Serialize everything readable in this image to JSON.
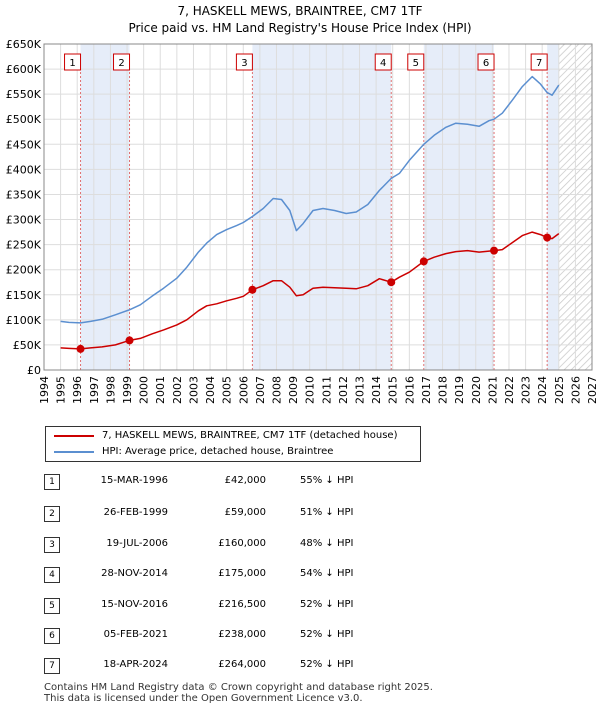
{
  "title_line1": "7, HASKELL MEWS, BRAINTREE, CM7 1TF",
  "title_line2": "Price paid vs. HM Land Registry's House Price Index (HPI)",
  "chart_data": {
    "type": "line",
    "title": "7, HASKELL MEWS, BRAINTREE, CM7 1TF",
    "subtitle": "Price paid vs. HM Land Registry's House Price Index (HPI)",
    "xlim": [
      1994,
      2027
    ],
    "ylim": [
      0,
      650000
    ],
    "x_ticks": [
      1994,
      1995,
      1996,
      1997,
      1998,
      1999,
      2000,
      2001,
      2002,
      2003,
      2004,
      2005,
      2006,
      2007,
      2008,
      2009,
      2010,
      2011,
      2012,
      2013,
      2014,
      2015,
      2016,
      2017,
      2018,
      2019,
      2020,
      2021,
      2022,
      2023,
      2024,
      2025,
      2026,
      2027
    ],
    "y_ticks": [
      {
        "value": 0,
        "label": "£0"
      },
      {
        "value": 50000,
        "label": "£50K"
      },
      {
        "value": 100000,
        "label": "£100K"
      },
      {
        "value": 150000,
        "label": "£150K"
      },
      {
        "value": 200000,
        "label": "£200K"
      },
      {
        "value": 250000,
        "label": "£250K"
      },
      {
        "value": 300000,
        "label": "£300K"
      },
      {
        "value": 350000,
        "label": "£350K"
      },
      {
        "value": 400000,
        "label": "£400K"
      },
      {
        "value": 450000,
        "label": "£450K"
      },
      {
        "value": 500000,
        "label": "£500K"
      },
      {
        "value": 550000,
        "label": "£550K"
      },
      {
        "value": 600000,
        "label": "£600K"
      },
      {
        "value": 650000,
        "label": "£650K"
      }
    ],
    "grid": true,
    "legend_position": "below",
    "shaded_periods": [
      [
        1996.2,
        1999.15
      ],
      [
        2006.55,
        2014.91
      ],
      [
        2016.87,
        2021.1
      ],
      [
        2024.3,
        2025.0
      ]
    ],
    "hatched_from": 2025.0,
    "series": [
      {
        "name": "7, HASKELL MEWS, BRAINTREE, CM7 1TF (detached house)",
        "color": "#cc0000",
        "points": [
          [
            1995.0,
            44000
          ],
          [
            1995.5,
            43000
          ],
          [
            1996.2,
            42000
          ],
          [
            1996.8,
            44000
          ],
          [
            1997.5,
            46000
          ],
          [
            1998.3,
            50000
          ],
          [
            1999.15,
            59000
          ],
          [
            1999.8,
            63000
          ],
          [
            2000.5,
            72000
          ],
          [
            2001.2,
            80000
          ],
          [
            2002.0,
            90000
          ],
          [
            2002.6,
            100000
          ],
          [
            2003.3,
            118000
          ],
          [
            2003.8,
            128000
          ],
          [
            2004.4,
            132000
          ],
          [
            2005.0,
            138000
          ],
          [
            2005.6,
            143000
          ],
          [
            2006.0,
            147000
          ],
          [
            2006.55,
            160000
          ],
          [
            2007.2,
            168000
          ],
          [
            2007.8,
            178000
          ],
          [
            2008.3,
            178000
          ],
          [
            2008.8,
            165000
          ],
          [
            2009.2,
            148000
          ],
          [
            2009.6,
            150000
          ],
          [
            2010.2,
            163000
          ],
          [
            2010.8,
            165000
          ],
          [
            2011.5,
            164000
          ],
          [
            2012.2,
            163000
          ],
          [
            2012.8,
            162000
          ],
          [
            2013.5,
            168000
          ],
          [
            2014.2,
            182000
          ],
          [
            2014.91,
            175000
          ],
          [
            2015.4,
            185000
          ],
          [
            2016.0,
            195000
          ],
          [
            2016.87,
            216500
          ],
          [
            2017.5,
            225000
          ],
          [
            2018.2,
            232000
          ],
          [
            2018.8,
            236000
          ],
          [
            2019.5,
            238000
          ],
          [
            2020.2,
            235000
          ],
          [
            2020.8,
            237000
          ],
          [
            2021.1,
            238000
          ],
          [
            2021.6,
            240000
          ],
          [
            2022.2,
            254000
          ],
          [
            2022.8,
            268000
          ],
          [
            2023.4,
            275000
          ],
          [
            2023.9,
            270000
          ],
          [
            2024.3,
            264000
          ],
          [
            2024.6,
            262000
          ],
          [
            2025.0,
            272000
          ]
        ]
      },
      {
        "name": "HPI: Average price, detached house, Braintree",
        "color": "#5b8fd0",
        "points": [
          [
            1995.0,
            97000
          ],
          [
            1995.5,
            95000
          ],
          [
            1996.2,
            94000
          ],
          [
            1996.8,
            97000
          ],
          [
            1997.5,
            101000
          ],
          [
            1998.3,
            110000
          ],
          [
            1999.15,
            120000
          ],
          [
            1999.8,
            130000
          ],
          [
            2000.5,
            147000
          ],
          [
            2001.2,
            163000
          ],
          [
            2002.0,
            183000
          ],
          [
            2002.6,
            205000
          ],
          [
            2003.3,
            235000
          ],
          [
            2003.8,
            253000
          ],
          [
            2004.4,
            270000
          ],
          [
            2005.0,
            280000
          ],
          [
            2005.6,
            288000
          ],
          [
            2006.0,
            294000
          ],
          [
            2006.55,
            306000
          ],
          [
            2007.2,
            322000
          ],
          [
            2007.8,
            342000
          ],
          [
            2008.3,
            340000
          ],
          [
            2008.8,
            318000
          ],
          [
            2009.2,
            278000
          ],
          [
            2009.6,
            292000
          ],
          [
            2010.2,
            318000
          ],
          [
            2010.8,
            322000
          ],
          [
            2011.5,
            318000
          ],
          [
            2012.2,
            312000
          ],
          [
            2012.8,
            315000
          ],
          [
            2013.5,
            330000
          ],
          [
            2014.2,
            358000
          ],
          [
            2014.91,
            382000
          ],
          [
            2015.4,
            392000
          ],
          [
            2016.0,
            418000
          ],
          [
            2016.87,
            450000
          ],
          [
            2017.5,
            468000
          ],
          [
            2018.2,
            484000
          ],
          [
            2018.8,
            492000
          ],
          [
            2019.5,
            490000
          ],
          [
            2020.2,
            486000
          ],
          [
            2020.8,
            497000
          ],
          [
            2021.1,
            500000
          ],
          [
            2021.6,
            512000
          ],
          [
            2022.2,
            538000
          ],
          [
            2022.8,
            565000
          ],
          [
            2023.4,
            585000
          ],
          [
            2023.9,
            570000
          ],
          [
            2024.3,
            553000
          ],
          [
            2024.6,
            548000
          ],
          [
            2025.0,
            568000
          ]
        ]
      }
    ],
    "markers": [
      {
        "label": "1",
        "x": 1996.2,
        "price": 42000
      },
      {
        "label": "2",
        "x": 1999.15,
        "price": 59000
      },
      {
        "label": "3",
        "x": 2006.55,
        "price": 160000
      },
      {
        "label": "4",
        "x": 2014.91,
        "price": 175000
      },
      {
        "label": "5",
        "x": 2016.87,
        "price": 216500
      },
      {
        "label": "6",
        "x": 2021.1,
        "price": 238000
      },
      {
        "label": "7",
        "x": 2024.3,
        "price": 264000
      }
    ]
  },
  "legend": [
    {
      "label": "7, HASKELL MEWS, BRAINTREE, CM7 1TF (detached house)",
      "color": "#cc0000"
    },
    {
      "label": "HPI: Average price, detached house, Braintree",
      "color": "#5b8fd0"
    }
  ],
  "sales": [
    {
      "num": "1",
      "date": "15-MAR-1996",
      "price": "£42,000",
      "hpi": "55% ↓ HPI"
    },
    {
      "num": "2",
      "date": "26-FEB-1999",
      "price": "£59,000",
      "hpi": "51% ↓ HPI"
    },
    {
      "num": "3",
      "date": "19-JUL-2006",
      "price": "£160,000",
      "hpi": "48% ↓ HPI"
    },
    {
      "num": "4",
      "date": "28-NOV-2014",
      "price": "£175,000",
      "hpi": "54% ↓ HPI"
    },
    {
      "num": "5",
      "date": "15-NOV-2016",
      "price": "£216,500",
      "hpi": "52% ↓ HPI"
    },
    {
      "num": "6",
      "date": "05-FEB-2021",
      "price": "£238,000",
      "hpi": "52% ↓ HPI"
    },
    {
      "num": "7",
      "date": "18-APR-2024",
      "price": "£264,000",
      "hpi": "52% ↓ HPI"
    }
  ],
  "footer_line1": "Contains HM Land Registry data © Crown copyright and database right 2025.",
  "footer_line2": "This data is licensed under the Open Government Licence v3.0."
}
